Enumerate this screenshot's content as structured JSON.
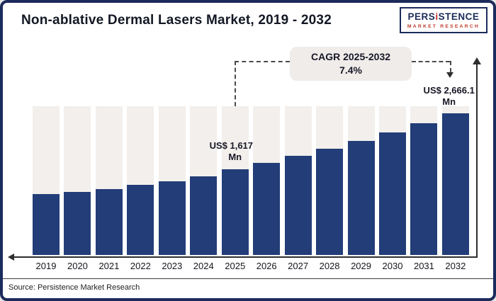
{
  "header": {
    "title": "Non-ablative Dermal Lasers Market, 2019 - 2032",
    "logo": {
      "part1": "PERS",
      "part2": "i",
      "part3": "STENCE",
      "subtitle": "MARKET RESEARCH"
    }
  },
  "chart_data": {
    "type": "bar",
    "title": "Non-ablative Dermal Lasers Market, 2019 - 2032",
    "categories": [
      "2019",
      "2020",
      "2021",
      "2022",
      "2023",
      "2024",
      "2025",
      "2026",
      "2027",
      "2028",
      "2029",
      "2030",
      "2031",
      "2032"
    ],
    "values": [
      1150,
      1185,
      1245,
      1315,
      1385,
      1475,
      1617.5,
      1737.2,
      1865.7,
      2003.8,
      2152.1,
      2311.3,
      2482.4,
      2666.1
    ],
    "value_labels": {
      "2025": "US$ 1,617.5 Mn",
      "2032": "US$ 2,666.1 Mn"
    },
    "cagr_label": "CAGR 2025-2032",
    "cagr_value": "7.4%",
    "xlabel": "",
    "ylabel": "",
    "ylim": [
      0,
      2800
    ],
    "grid": false,
    "legend": false,
    "bar_color": "#223d78",
    "track_color": "#f2efec"
  },
  "footer": {
    "source": "Source: Persistence Market Research"
  }
}
